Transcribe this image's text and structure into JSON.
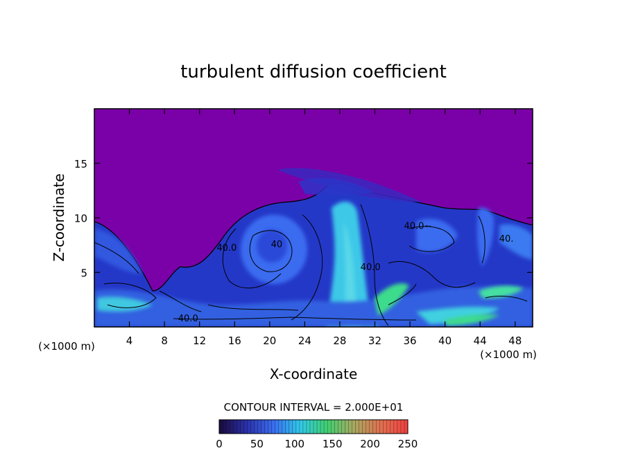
{
  "chart_data": {
    "type": "heatmap",
    "title": "turbulent diffusion coefficient",
    "xlabel": "X-coordinate",
    "ylabel": "Z-coordinate",
    "x_unit": "(×1000 m)",
    "x_unit_right": "(×1000 m)",
    "xlim": [
      0,
      50
    ],
    "ylim": [
      0,
      20
    ],
    "x_ticks": [
      4,
      8,
      12,
      16,
      20,
      24,
      28,
      32,
      36,
      40,
      44,
      48
    ],
    "y_ticks": [
      5,
      10,
      15
    ],
    "contour_interval_text": "CONTOUR INTERVAL = 2.000E+01",
    "contour_labels": [
      {
        "text": "40.0",
        "x": 15.1,
        "y": 7.0
      },
      {
        "text": "40",
        "x": 20.8,
        "y": 7.3
      },
      {
        "text": "40.0",
        "x": 31.5,
        "y": 5.2
      },
      {
        "text": "40.0~",
        "x": 36.9,
        "y": 9.0
      },
      {
        "text": "40.",
        "x": 47.0,
        "y": 7.8
      },
      {
        "text": "40.0",
        "x": 10.7,
        "y": 0.5
      }
    ],
    "colorbar": {
      "min": 0,
      "max": 250,
      "ticks": [
        0,
        50,
        100,
        150,
        200,
        250
      ],
      "colors": [
        "#1a0a3c",
        "#2a30a8",
        "#3a6cf0",
        "#30c8e8",
        "#40d070",
        "#a8a860",
        "#e07050",
        "#f04040"
      ]
    },
    "colors": {
      "background": "#7a00a8",
      "low": "#1b2ec8",
      "mid": "#3a6cf0",
      "high": "#36d8e0",
      "peak": "#3cdc8c"
    }
  }
}
